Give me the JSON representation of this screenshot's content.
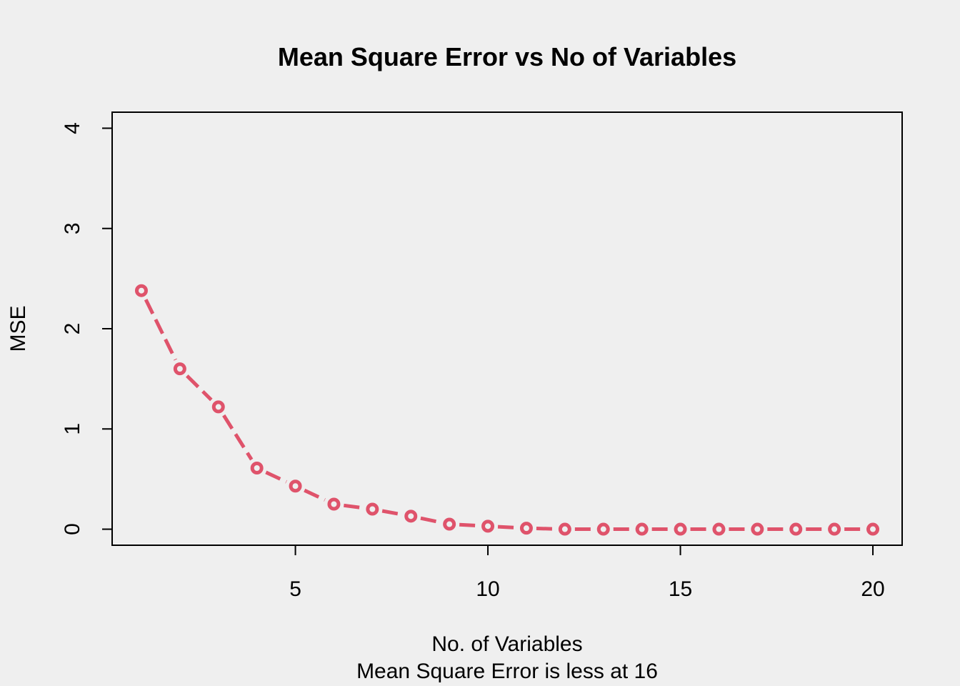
{
  "chart_data": {
    "type": "line",
    "title": "Mean Square Error vs No of Variables",
    "xlabel": "No. of Variables",
    "subtitle": "Mean Square Error is less at 16",
    "ylabel": "MSE",
    "x": [
      1,
      2,
      3,
      4,
      5,
      6,
      7,
      8,
      9,
      10,
      11,
      12,
      13,
      14,
      15,
      16,
      17,
      18,
      19,
      20
    ],
    "series": [
      {
        "values": [
          2.38,
          1.6,
          1.22,
          0.61,
          0.43,
          0.25,
          0.2,
          0.13,
          0.05,
          0.03,
          0.01,
          0.0,
          0.0,
          0.0,
          0.0,
          0.0,
          0.0,
          0.0,
          0.0,
          0.0
        ],
        "color": "#df536b",
        "line_style": "dashed",
        "marker": "open-circle"
      }
    ],
    "xticks": [
      5,
      10,
      15,
      20
    ],
    "yticks": [
      0,
      1,
      2,
      3,
      4
    ],
    "xlim": [
      0.24,
      20.76
    ],
    "ylim": [
      -0.16,
      4.16
    ],
    "grid": false,
    "background": "#efefef"
  }
}
